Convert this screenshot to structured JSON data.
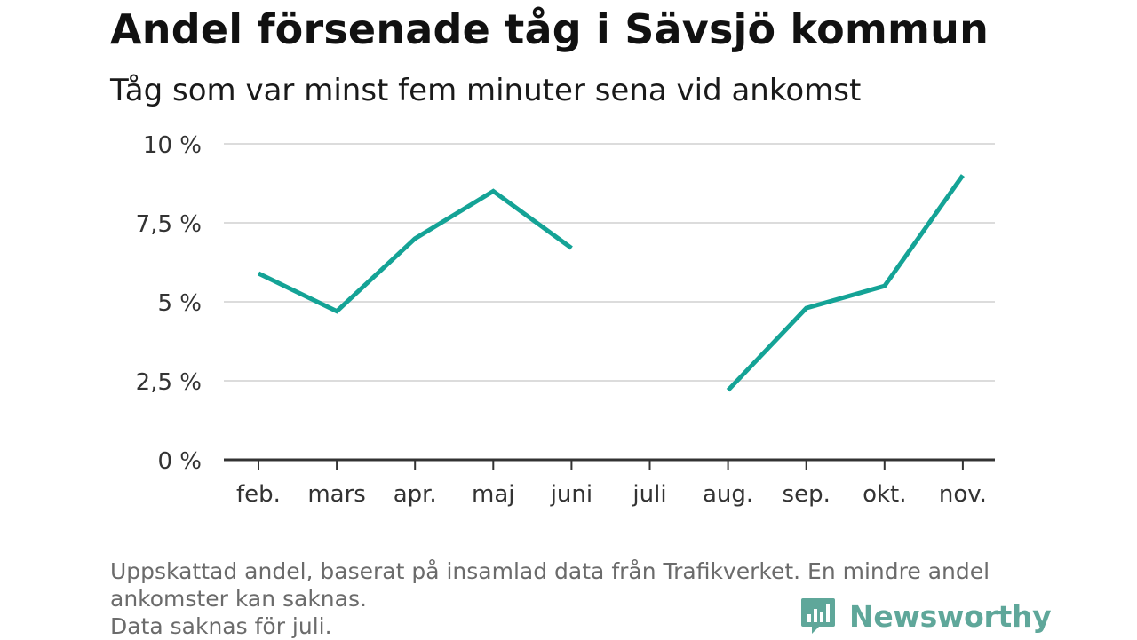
{
  "title": "Andel försenade tåg i Sävsjö kommun",
  "subtitle": "Tåg som var minst fem minuter sena vid ankomst",
  "footnote": {
    "line1": "Uppskattad andel, baserat på insamlad data från Trafikverket. En mindre andel",
    "line2": "ankomster kan saknas.",
    "line3": "Data saknas för juli."
  },
  "brand": {
    "name": "Newsworthy",
    "icon": "bar-chart-speech-bubble-icon",
    "color": "#5fa79a"
  },
  "chart_data": {
    "type": "line",
    "categories": [
      "feb.",
      "mars",
      "apr.",
      "maj",
      "juni",
      "juli",
      "aug.",
      "sep.",
      "okt.",
      "nov."
    ],
    "series": [
      {
        "values": [
          5.9,
          4.7,
          7.0,
          8.5,
          6.7,
          null,
          2.2,
          4.8,
          5.5,
          9.0
        ],
        "color": "#14a396"
      }
    ],
    "yticks": [
      0,
      2.5,
      5,
      7.5,
      10
    ],
    "ytick_labels": [
      "0 %",
      "2,5 %",
      "5 %",
      "7,5 %",
      "10 %"
    ],
    "ylim": [
      0,
      10
    ],
    "grid": true,
    "legend": "none"
  }
}
